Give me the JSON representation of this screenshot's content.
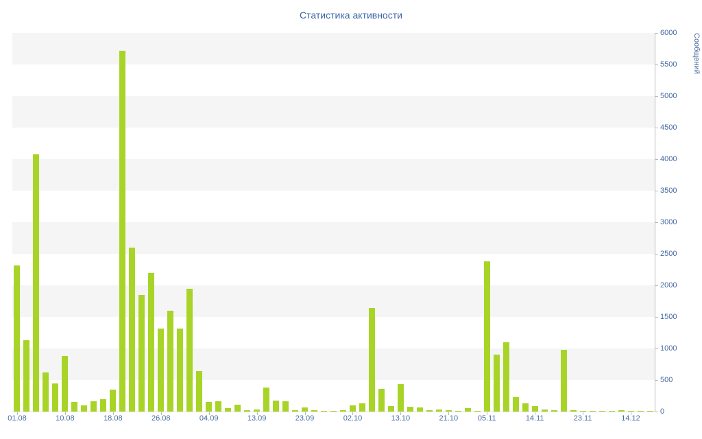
{
  "title": "Статистика активности",
  "chart_data": {
    "type": "bar",
    "title": "Статистика активности",
    "xlabel": "",
    "ylabel": "Сообщений",
    "ylim": [
      0,
      6000
    ],
    "grid": "horizontal-bands",
    "legend_position": "none",
    "bar_color": "#a8d428",
    "y_ticks": [
      0,
      500,
      1000,
      1500,
      2000,
      2500,
      3000,
      3500,
      4000,
      4500,
      5000,
      5500,
      6000
    ],
    "values": [
      2320,
      1130,
      4080,
      620,
      450,
      880,
      150,
      100,
      160,
      200,
      350,
      5720,
      2600,
      1850,
      2200,
      1320,
      1600,
      1310,
      1950,
      640,
      150,
      160,
      50,
      110,
      20,
      30,
      380,
      170,
      160,
      20,
      60,
      20,
      15,
      10,
      20,
      100,
      130,
      1640,
      360,
      90,
      430,
      80,
      60,
      20,
      30,
      20,
      15,
      50,
      10,
      2380,
      900,
      1100,
      230,
      130,
      90,
      30,
      20,
      980,
      20,
      15,
      10,
      15,
      10,
      20,
      10,
      15,
      10
    ],
    "x_ticks": [
      {
        "index": 0,
        "label": "01.08"
      },
      {
        "index": 5,
        "label": "10.08"
      },
      {
        "index": 10,
        "label": "18.08"
      },
      {
        "index": 15,
        "label": "26.08"
      },
      {
        "index": 20,
        "label": "04.09"
      },
      {
        "index": 25,
        "label": "13.09"
      },
      {
        "index": 30,
        "label": "23.09"
      },
      {
        "index": 35,
        "label": "02.10"
      },
      {
        "index": 40,
        "label": "13.10"
      },
      {
        "index": 45,
        "label": "21.10"
      },
      {
        "index": 49,
        "label": "05.11"
      },
      {
        "index": 54,
        "label": "14.11"
      },
      {
        "index": 59,
        "label": "23.11"
      },
      {
        "index": 64,
        "label": "14.12"
      }
    ]
  }
}
